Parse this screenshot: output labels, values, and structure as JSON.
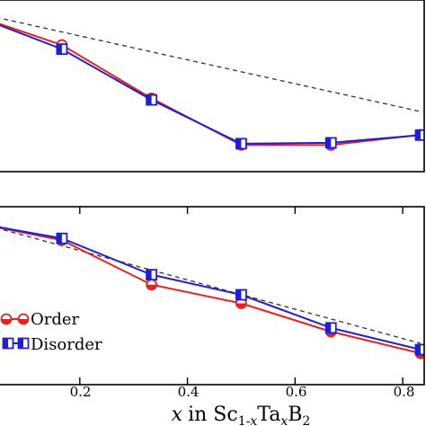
{
  "chart_data": [
    {
      "type": "line",
      "xlim": [
        0.05,
        0.84
      ],
      "ylim": [
        0,
        1
      ],
      "grid": false,
      "x": [
        0,
        0.1667,
        0.3333,
        0.5,
        0.6667,
        0.8333
      ],
      "series": [
        {
          "name": "Order",
          "color": "#e8201e",
          "marker": "circle-half",
          "values": [
            0.915,
            0.738,
            0.427,
            0.155,
            0.155,
            0.215
          ]
        },
        {
          "name": "Disorder",
          "color": "#1f1fd0",
          "marker": "square-half",
          "values": [
            0.915,
            0.714,
            0.418,
            0.163,
            0.168,
            0.213
          ]
        }
      ],
      "reference": {
        "style": "dashed",
        "color": "#333333",
        "x": [
          0,
          0.8333
        ],
        "values": [
          0.93,
          0.35
        ]
      }
    },
    {
      "type": "line",
      "xlim": [
        0.05,
        0.84
      ],
      "ylim": [
        0,
        1
      ],
      "grid": false,
      "xticks": [
        "0.2",
        "0.4",
        "0.6",
        "0.8"
      ],
      "xtick_values": [
        0.2,
        0.4,
        0.6,
        0.8
      ],
      "xlabel": {
        "italic_x": "x",
        "in_text": "in Sc",
        "sub1": "1-",
        "sub1_x": "x",
        "ta": "Ta",
        "sub2_x": "x",
        "b": "B",
        "sub3": "2"
      },
      "legend": {
        "placement": "lower-left",
        "entries": [
          "Order",
          "Disorder"
        ]
      },
      "x": [
        0,
        0.1667,
        0.3333,
        0.5,
        0.6667,
        0.8333
      ],
      "series": [
        {
          "name": "Order",
          "color": "#e8201e",
          "marker": "circle-half",
          "values": [
            0.912,
            0.812,
            0.562,
            0.457,
            0.298,
            0.176
          ]
        },
        {
          "name": "Disorder",
          "color": "#1f1fd0",
          "marker": "square-half",
          "values": [
            0.912,
            0.822,
            0.618,
            0.505,
            0.319,
            0.197
          ]
        }
      ],
      "reference": {
        "style": "dashed",
        "color": "#333333",
        "x": [
          0,
          0.8333
        ],
        "values": [
          0.918,
          0.232
        ]
      }
    }
  ]
}
